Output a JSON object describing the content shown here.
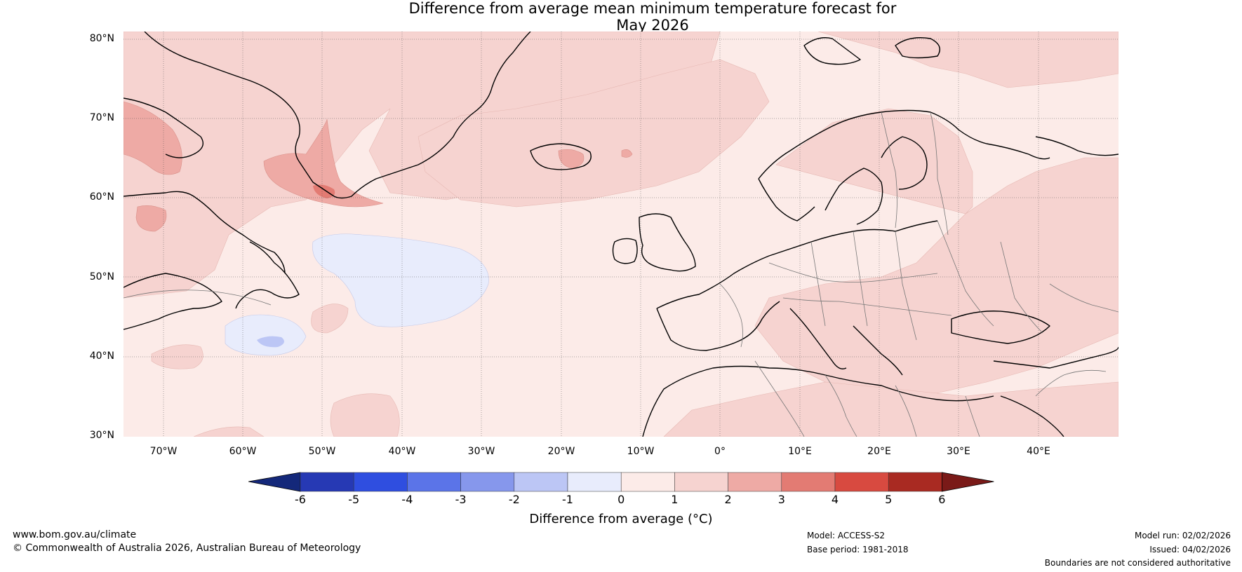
{
  "title": {
    "line1": "Difference from average mean minimum temperature forecast for",
    "line2": "May 2026"
  },
  "map": {
    "lat_labels": [
      "80°N",
      "70°N",
      "60°N",
      "50°N",
      "40°N",
      "30°N"
    ],
    "lon_labels": [
      "70°W",
      "60°W",
      "50°W",
      "40°W",
      "30°W",
      "20°W",
      "10°W",
      "0°",
      "10°E",
      "20°E",
      "30°E",
      "40°E"
    ],
    "extent": {
      "lon_min": -75,
      "lon_max": 50,
      "lat_min": 30,
      "lat_max": 81
    }
  },
  "colorbar": {
    "ticks": [
      "-6",
      "-5",
      "-4",
      "-3",
      "-2",
      "-1",
      "0",
      "1",
      "2",
      "3",
      "4",
      "5",
      "6"
    ],
    "colors": [
      "#14287a",
      "#2639b4",
      "#2f4ee0",
      "#5b74e8",
      "#8697ec",
      "#bcc6f5",
      "#e8ecfc",
      "#fcebe8",
      "#f6d3d0",
      "#eeaaa5",
      "#e37b73",
      "#d84a40",
      "#a92a22",
      "#7a1a18"
    ],
    "label": "Difference from average (°C)"
  },
  "footer": {
    "website": "www.bom.gov.au/climate",
    "copyright": "© Commonwealth of Australia 2026, Australian Bureau of Meteorology",
    "model": "Model: ACCESS-S2",
    "base_period": "Base period: 1981-2018",
    "model_run": "Model run: 02/02/2026",
    "issued": "Issued: 04/02/2026",
    "disclaimer": "Boundaries are not considered authoritative"
  }
}
